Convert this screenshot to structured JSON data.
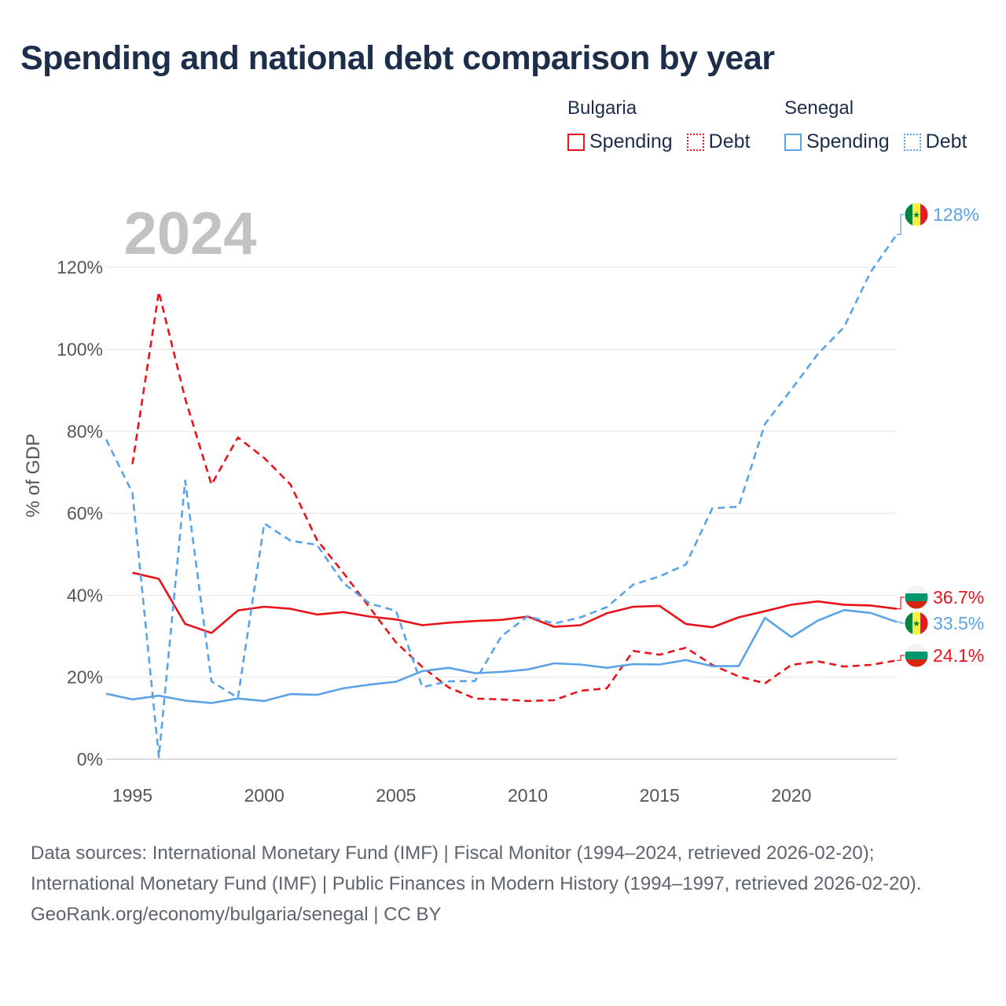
{
  "title": "Spending and national debt comparison by year",
  "legend": {
    "groups": [
      {
        "name": "Bulgaria",
        "color": "#e8141a",
        "items": [
          {
            "label": "Spending",
            "style": "solid"
          },
          {
            "label": "Debt",
            "style": "dotted"
          }
        ]
      },
      {
        "name": "Senegal",
        "color": "#5aa3e6",
        "items": [
          {
            "label": "Spending",
            "style": "solid"
          },
          {
            "label": "Debt",
            "style": "dotted"
          }
        ]
      }
    ]
  },
  "year_watermark": "2024",
  "end_labels": [
    {
      "country": "Senegal",
      "series": "Debt",
      "text": "128%",
      "color": "#5aa3e6"
    },
    {
      "country": "Bulgaria",
      "series": "Spending",
      "text": "36.7%",
      "color": "#e8141a"
    },
    {
      "country": "Senegal",
      "series": "Spending",
      "text": "33.5%",
      "color": "#5aa3e6"
    },
    {
      "country": "Bulgaria",
      "series": "Debt",
      "text": "24.1%",
      "color": "#e8141a"
    }
  ],
  "chart_data": {
    "type": "line",
    "ylabel": "% of GDP",
    "xlabel": "",
    "xlim": [
      1994,
      2024
    ],
    "ylim": [
      0,
      130
    ],
    "x_ticks": [
      1995,
      2000,
      2005,
      2010,
      2015,
      2020
    ],
    "y_ticks": [
      0,
      20,
      40,
      60,
      80,
      100,
      120
    ],
    "y_tick_labels": [
      "0%",
      "20%",
      "40%",
      "60%",
      "80%",
      "100%",
      "120%"
    ],
    "series": [
      {
        "name": "Bulgaria Spending",
        "color": "#e8141a",
        "dash": "solid",
        "x": [
          1995,
          1996,
          1997,
          1998,
          1999,
          2000,
          2001,
          2002,
          2003,
          2004,
          2005,
          2006,
          2007,
          2008,
          2009,
          2010,
          2011,
          2012,
          2013,
          2014,
          2015,
          2016,
          2017,
          2018,
          2019,
          2020,
          2021,
          2022,
          2023,
          2024
        ],
        "values": [
          45.5,
          44,
          33,
          30.8,
          36.3,
          37.2,
          36.7,
          35.3,
          35.9,
          34.8,
          34.1,
          32.7,
          33.3,
          33.7,
          34,
          34.8,
          32.3,
          32.7,
          35.6,
          37.2,
          37.4,
          33,
          32.2,
          34.6,
          36.1,
          37.7,
          38.5,
          37.7,
          37.5,
          36.7
        ]
      },
      {
        "name": "Bulgaria Debt",
        "color": "#e8141a",
        "dash": "dashed",
        "x": [
          1995,
          1996,
          1997,
          1998,
          1999,
          2000,
          2001,
          2002,
          2003,
          2004,
          2005,
          2006,
          2007,
          2008,
          2009,
          2010,
          2011,
          2012,
          2013,
          2014,
          2015,
          2016,
          2017,
          2018,
          2019,
          2020,
          2021,
          2022,
          2023,
          2024
        ],
        "values": [
          72,
          114,
          88,
          67,
          78.5,
          73.5,
          67,
          53.5,
          45.5,
          37,
          28.5,
          22.5,
          17.5,
          14.8,
          14.6,
          14.2,
          14.4,
          16.7,
          17.3,
          26.4,
          25.5,
          27.2,
          23,
          20.2,
          18.5,
          23,
          23.9,
          22.6,
          23,
          24.1
        ]
      },
      {
        "name": "Senegal Spending",
        "color": "#5aa3e6",
        "dash": "solid",
        "x": [
          1994,
          1995,
          1996,
          1997,
          1998,
          1999,
          2000,
          2001,
          2002,
          2003,
          2004,
          2005,
          2006,
          2007,
          2008,
          2009,
          2010,
          2011,
          2012,
          2013,
          2014,
          2015,
          2016,
          2017,
          2018,
          2019,
          2020,
          2021,
          2022,
          2023,
          2024
        ],
        "values": [
          16,
          14.6,
          15.5,
          14.3,
          13.7,
          14.8,
          14.2,
          15.9,
          15.7,
          17.3,
          18.2,
          18.9,
          21.5,
          22.3,
          21,
          21.3,
          21.9,
          23.4,
          23.1,
          22.3,
          23.2,
          23.1,
          24.2,
          22.7,
          22.7,
          34.5,
          29.8,
          33.8,
          36.4,
          35.7,
          33.5
        ]
      },
      {
        "name": "Senegal Debt",
        "color": "#5aa3e6",
        "dash": "dashed",
        "x": [
          1994,
          1995,
          1996,
          1997,
          1998,
          1999,
          2000,
          2001,
          2002,
          2003,
          2004,
          2005,
          2006,
          2007,
          2008,
          2009,
          2010,
          2011,
          2012,
          2013,
          2014,
          2015,
          2016,
          2017,
          2018,
          2019,
          2020,
          2021,
          2022,
          2023,
          2024
        ],
        "values": [
          78,
          65,
          0.5,
          68,
          19,
          15,
          57.5,
          53.3,
          52.3,
          43,
          38,
          36.2,
          17.6,
          19,
          19.1,
          30,
          34.9,
          33.1,
          34.6,
          37.1,
          42.6,
          44.6,
          47.5,
          61.2,
          61.6,
          81.8,
          90.2,
          98.8,
          105.4,
          118.8,
          128
        ]
      }
    ]
  },
  "footer": {
    "sources": "Data sources: International Monetary Fund (IMF) | Fiscal Monitor (1994–2024, retrieved 2026-02-20); International Monetary Fund (IMF) | Public Finances in Modern History (1994–1997, retrieved 2026-02-20).",
    "credit": "GeoRank.org/economy/bulgaria/senegal | CC BY"
  }
}
